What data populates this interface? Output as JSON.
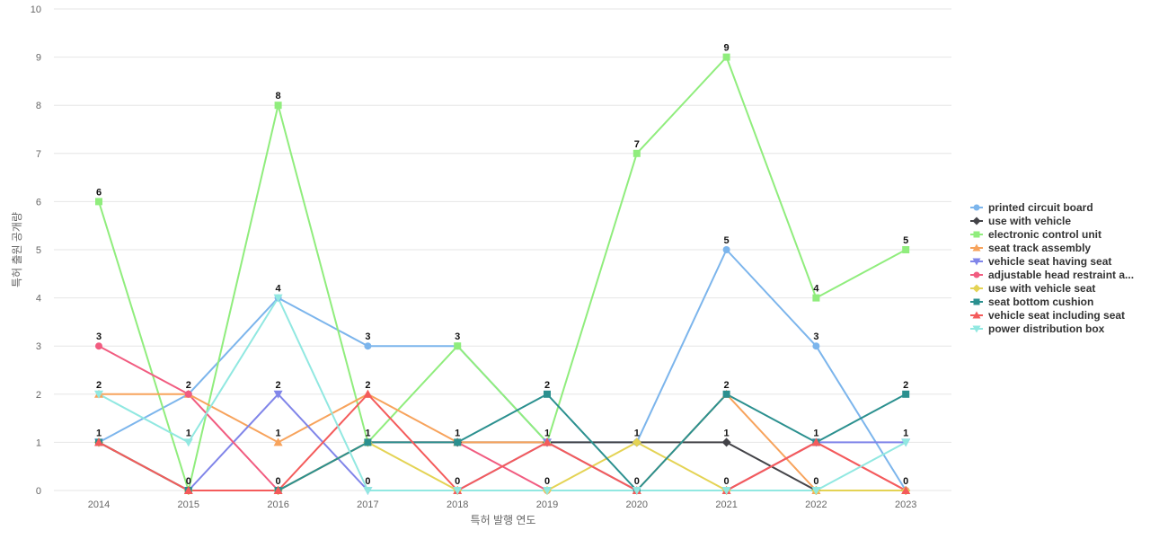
{
  "chart_data": {
    "type": "line",
    "xlabel": "특허 발행 연도",
    "ylabel": "특허 출원 공개량",
    "ylim": [
      0,
      10
    ],
    "y_ticks": [
      0,
      1,
      2,
      3,
      4,
      5,
      6,
      7,
      8,
      9,
      10
    ],
    "grid": true,
    "legend_position": "right",
    "categories": [
      "2014",
      "2015",
      "2016",
      "2017",
      "2018",
      "2019",
      "2020",
      "2021",
      "2022",
      "2023"
    ],
    "series": [
      {
        "name": "printed circuit board",
        "color": "#7cb5ec",
        "marker": "circle",
        "values": [
          1,
          2,
          4,
          3,
          3,
          1,
          1,
          5,
          3,
          0
        ]
      },
      {
        "name": "use with vehicle",
        "color": "#434348",
        "marker": "diamond",
        "values": [
          1,
          0,
          0,
          1,
          1,
          1,
          1,
          1,
          0,
          0
        ]
      },
      {
        "name": "electronic control unit",
        "color": "#90ed7d",
        "marker": "square",
        "values": [
          6,
          0,
          8,
          1,
          3,
          1,
          7,
          9,
          4,
          5
        ]
      },
      {
        "name": "seat track assembly",
        "color": "#f7a35c",
        "marker": "triangle",
        "values": [
          2,
          2,
          1,
          2,
          1,
          1,
          0,
          2,
          0,
          0
        ]
      },
      {
        "name": "vehicle seat having seat",
        "color": "#8085e9",
        "marker": "triangle-down",
        "values": [
          1,
          0,
          2,
          0,
          0,
          1,
          0,
          0,
          1,
          1
        ]
      },
      {
        "name": "adjustable head restraint a...",
        "color": "#f15c80",
        "marker": "circle",
        "values": [
          3,
          2,
          0,
          1,
          1,
          0,
          0,
          0,
          1,
          0
        ]
      },
      {
        "name": "use with vehicle seat",
        "color": "#e4d354",
        "marker": "diamond",
        "values": [
          1,
          0,
          0,
          1,
          0,
          0,
          1,
          0,
          0,
          0
        ]
      },
      {
        "name": "seat bottom cushion",
        "color": "#2b908f",
        "marker": "square",
        "values": [
          1,
          0,
          0,
          1,
          1,
          2,
          0,
          2,
          1,
          2
        ]
      },
      {
        "name": "vehicle seat including seat",
        "color": "#f45b5b",
        "marker": "triangle",
        "values": [
          1,
          0,
          0,
          2,
          0,
          1,
          0,
          0,
          1,
          0
        ]
      },
      {
        "name": "power distribution box",
        "color": "#91e8e1",
        "marker": "triangle-down",
        "values": [
          2,
          1,
          4,
          0,
          0,
          0,
          0,
          0,
          0,
          1
        ]
      }
    ],
    "data_labels": {
      "values": [
        6,
        0,
        8,
        1,
        3,
        1,
        7,
        9,
        4,
        5
      ],
      "secondary": [
        3,
        2,
        4,
        3,
        3,
        2,
        1,
        5,
        3,
        2
      ],
      "tertiary": [
        2,
        1,
        2,
        2,
        1,
        1,
        0,
        2,
        1,
        1
      ],
      "quaternary": [
        1,
        0,
        1,
        1,
        0,
        0,
        0,
        1,
        0,
        0
      ]
    }
  }
}
